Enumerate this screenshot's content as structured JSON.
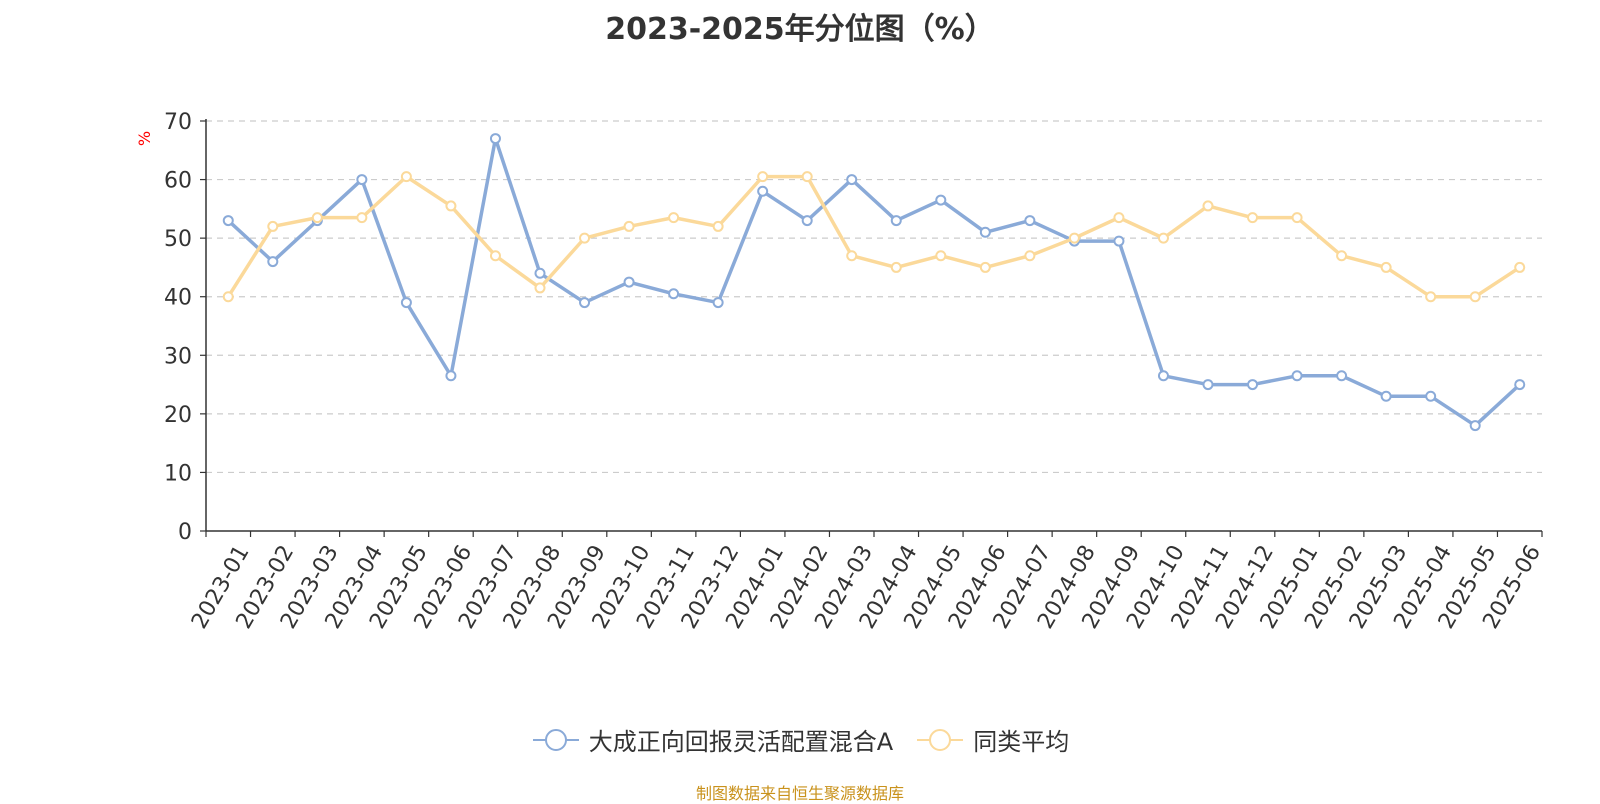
{
  "chart_data": {
    "type": "line",
    "title": "2023-2025年分位图（%）",
    "ylabel": "%",
    "ylim": [
      0,
      70
    ],
    "yticks": [
      0,
      10,
      20,
      30,
      40,
      50,
      60,
      70
    ],
    "grid": true,
    "legend_position": "bottom",
    "categories": [
      "2023-01",
      "2023-02",
      "2023-03",
      "2023-04",
      "2023-05",
      "2023-06",
      "2023-07",
      "2023-08",
      "2023-09",
      "2023-10",
      "2023-11",
      "2023-12",
      "2024-01",
      "2024-02",
      "2024-03",
      "2024-04",
      "2024-05",
      "2024-06",
      "2024-07",
      "2024-08",
      "2024-09",
      "2024-10",
      "2024-11",
      "2024-12",
      "2025-01",
      "2025-02",
      "2025-03",
      "2025-04",
      "2025-05",
      "2025-06"
    ],
    "series": [
      {
        "name": "大成正向回报灵活配置混合A",
        "color": "#8aaad8",
        "values": [
          53,
          46,
          53,
          60,
          39,
          26.5,
          67,
          44,
          39,
          42.5,
          40.5,
          39,
          58,
          53,
          60,
          53,
          56.5,
          51,
          53,
          49.5,
          49.5,
          26.5,
          25,
          25,
          26.5,
          26.5,
          23,
          23,
          18,
          25
        ]
      },
      {
        "name": "同类平均",
        "color": "#fbd99a",
        "values": [
          40,
          52,
          53.5,
          53.5,
          60.5,
          55.5,
          47,
          41.5,
          50,
          52,
          53.5,
          52,
          60.5,
          60.5,
          47,
          45,
          47,
          45,
          47,
          50,
          53.5,
          50,
          55.5,
          53.5,
          53.5,
          47,
          45,
          40,
          40,
          45
        ]
      }
    ]
  },
  "footer": {
    "source": "制图数据来自恒生聚源数据库"
  }
}
